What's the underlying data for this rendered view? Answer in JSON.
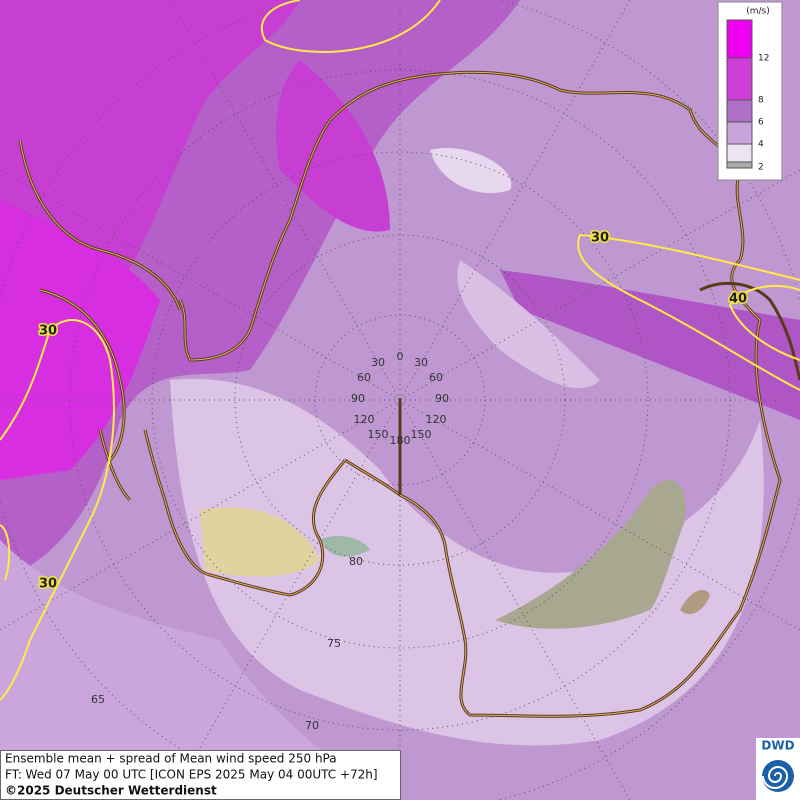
{
  "legend": {
    "unit": "(m/s)",
    "ticks": [
      "12",
      "8",
      "6",
      "4",
      "2"
    ]
  },
  "contour_labels": [
    "30",
    "30",
    "30",
    "40"
  ],
  "longitude_labels": [
    "0",
    "30",
    "30",
    "60",
    "60",
    "90",
    "90",
    "120",
    "120",
    "150",
    "150",
    "180"
  ],
  "latitude_labels": [
    "80",
    "75",
    "70",
    "65"
  ],
  "footer": {
    "line1": "Ensemble mean + spread of Mean wind speed 250 hPa",
    "line2": "FT: Wed 07 May 00 UTC [ICON EPS 2025 May 04 00UTC +72h]",
    "line3": "©2025 Deutscher Wetterdienst"
  },
  "logo": "DWD"
}
